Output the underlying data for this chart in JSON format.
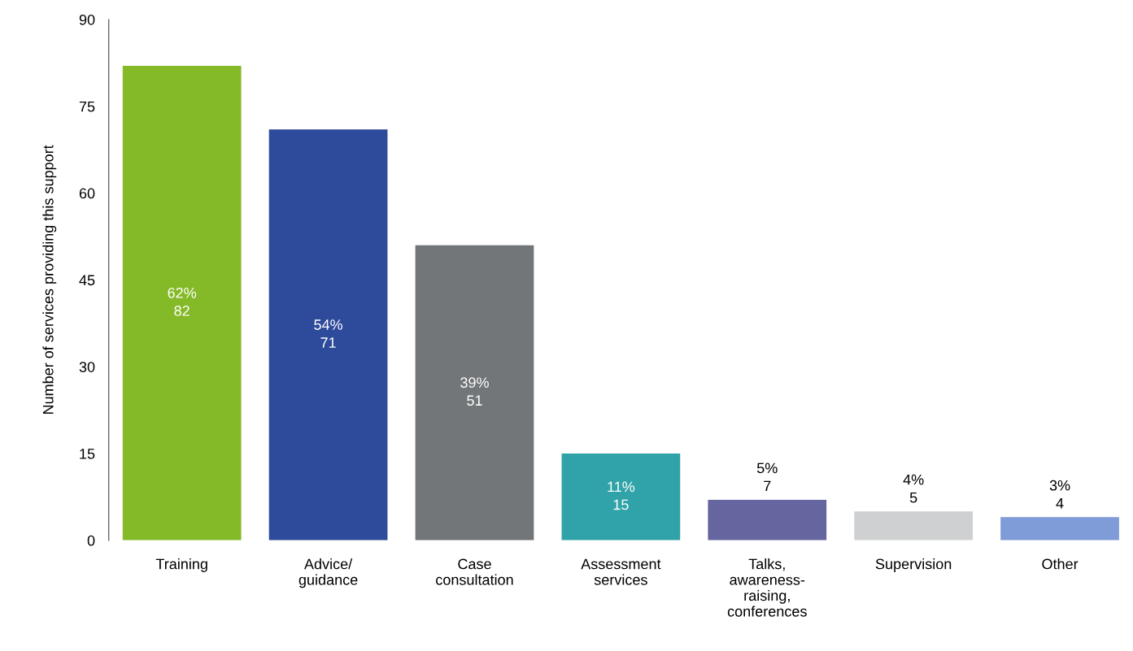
{
  "chart_data": {
    "type": "bar",
    "ylabel": "Number of services providing this support",
    "categories": [
      "Training",
      "Advice/\nguidance",
      "Case\nconsultation",
      "Assessment\nservices",
      "Talks,\nawareness-\nraising,\nconferences",
      "Supervision",
      "Other"
    ],
    "values": [
      82,
      71,
      51,
      15,
      7,
      5,
      4
    ],
    "colors": [
      "#84b928",
      "#2e4a9a",
      "#727679",
      "#30a3a8",
      "#65659f",
      "#cfd0d2",
      "#7f9bd8"
    ],
    "value_labels": [
      "62%\n82",
      "54%\n71",
      "39%\n51",
      "11%\n15",
      "5%\n7",
      "4%\n5",
      "3%\n4"
    ],
    "ylim": [
      0,
      90
    ],
    "yticks": [
      0,
      15,
      30,
      45,
      60,
      75,
      90
    ],
    "grid": false,
    "legend": false
  }
}
